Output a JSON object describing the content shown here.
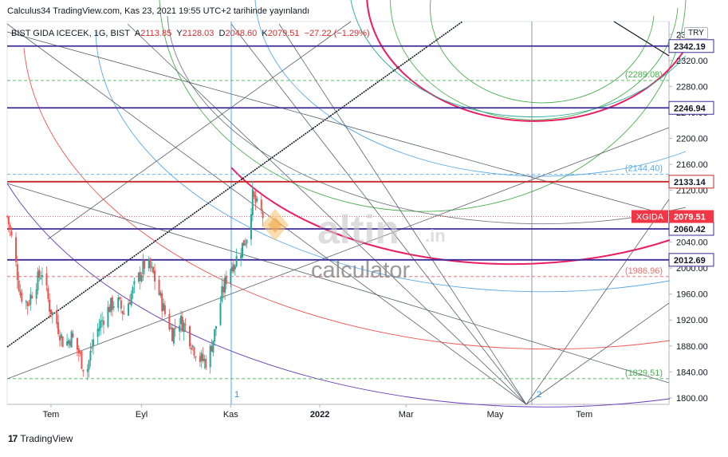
{
  "header": {
    "published": "Calculus34 TradingView.com, Kas 23, 2021 19:55 UTC+2 tarihinde yayınlandı"
  },
  "legend": {
    "symbol": "BIST GIDA ICECEK, 1G, BIST",
    "open_label": "A",
    "open": "2113.85",
    "high_label": "Y",
    "high": "2128.03",
    "low_label": "D",
    "low": "2048.60",
    "close_label": "K",
    "close": "2079.51",
    "change": "−27.22 (−1.29%)"
  },
  "currency": "TRY",
  "watermark": {
    "brand": "altin",
    "tld": ".in",
    "sub": "calculator"
  },
  "footer": {
    "logo": "17",
    "brand": "TradingView"
  },
  "chart_data": {
    "type": "candlestick",
    "ylim": [
      1790,
      2380
    ],
    "y_ticks": [
      1800,
      1840,
      1880,
      1920,
      1960,
      2000,
      2040,
      2080,
      2120,
      2160,
      2200,
      2240,
      2280,
      2320,
      2360
    ],
    "y_tick_labels": [
      "1800.00",
      "1840.00",
      "1880.00",
      "1920.00",
      "1960.00",
      "2000.00",
      "2040.00",
      "2080.00",
      "2120.00",
      "2160.00",
      "2200.00",
      "2240.00",
      "2280.00",
      "2320.00",
      "2360.00"
    ],
    "x_labels": [
      "Tem",
      "Eyl",
      "Kas",
      "2022",
      "Mar",
      "May",
      "Tem"
    ],
    "x_tick_dates": [
      "2021-07-01",
      "2021-09-01",
      "2021-11-01",
      "2022-01-01",
      "2022-03-01",
      "2022-05-01",
      "2022-07-01"
    ],
    "x_range": [
      "2021-06-01",
      "2022-08-28"
    ],
    "horizontal_levels": [
      {
        "value": 2342.19,
        "label": "2342.19",
        "color": "#3f2b96",
        "style": "solid"
      },
      {
        "value": 2246.94,
        "label": "2246.94",
        "color": "#3f2b96",
        "style": "solid"
      },
      {
        "value": 2133.14,
        "label": "2133.14",
        "color": "#c62828",
        "style": "solid"
      },
      {
        "value": 2060.42,
        "label": "2060.42",
        "color": "#3f2b96",
        "style": "solid"
      },
      {
        "value": 2012.69,
        "label": "2012.69",
        "color": "#3f2b96",
        "style": "solid"
      },
      {
        "value": 2289.08,
        "label": "(2289.08)",
        "color": "#4caf50",
        "style": "dashed"
      },
      {
        "value": 2144.4,
        "label": "(2144.40)",
        "color": "#5aa9e6",
        "style": "dashed"
      },
      {
        "value": 1986.96,
        "label": "(1986.96)",
        "color": "#e57373",
        "style": "dashed"
      },
      {
        "value": 1829.51,
        "label": "(1829.51)",
        "color": "#4caf50",
        "style": "dashed"
      }
    ],
    "last_price": {
      "symbol": "XGIDA",
      "value": 2079.51,
      "color": "#f23645"
    },
    "markers": [
      "1",
      "2"
    ],
    "close_path": [
      [
        "2021-06-01",
        2080
      ],
      [
        "2021-06-05",
        2035
      ],
      [
        "2021-06-10",
        1960
      ],
      [
        "2021-06-15",
        1945
      ],
      [
        "2021-06-20",
        1975
      ],
      [
        "2021-06-25",
        1995
      ],
      [
        "2021-06-30",
        1940
      ],
      [
        "2021-07-05",
        1915
      ],
      [
        "2021-07-10",
        1880
      ],
      [
        "2021-07-15",
        1895
      ],
      [
        "2021-07-20",
        1870
      ],
      [
        "2021-07-25",
        1835
      ],
      [
        "2021-07-30",
        1890
      ],
      [
        "2021-08-05",
        1920
      ],
      [
        "2021-08-10",
        1940
      ],
      [
        "2021-08-15",
        1950
      ],
      [
        "2021-08-20",
        1930
      ],
      [
        "2021-08-25",
        1960
      ],
      [
        "2021-08-30",
        1985
      ],
      [
        "2021-09-04",
        2010
      ],
      [
        "2021-09-09",
        1990
      ],
      [
        "2021-09-13",
        1960
      ],
      [
        "2021-09-17",
        1930
      ],
      [
        "2021-09-22",
        1900
      ],
      [
        "2021-09-27",
        1920
      ],
      [
        "2021-10-01",
        1910
      ],
      [
        "2021-10-06",
        1880
      ],
      [
        "2021-10-11",
        1860
      ],
      [
        "2021-10-16",
        1855
      ],
      [
        "2021-10-21",
        1900
      ],
      [
        "2021-10-26",
        1960
      ],
      [
        "2021-10-31",
        2000
      ],
      [
        "2021-11-04",
        2010
      ],
      [
        "2021-11-08",
        2030
      ],
      [
        "2021-11-12",
        2050
      ],
      [
        "2021-11-16",
        2110
      ],
      [
        "2021-11-19",
        2095
      ],
      [
        "2021-11-23",
        2080
      ]
    ]
  }
}
